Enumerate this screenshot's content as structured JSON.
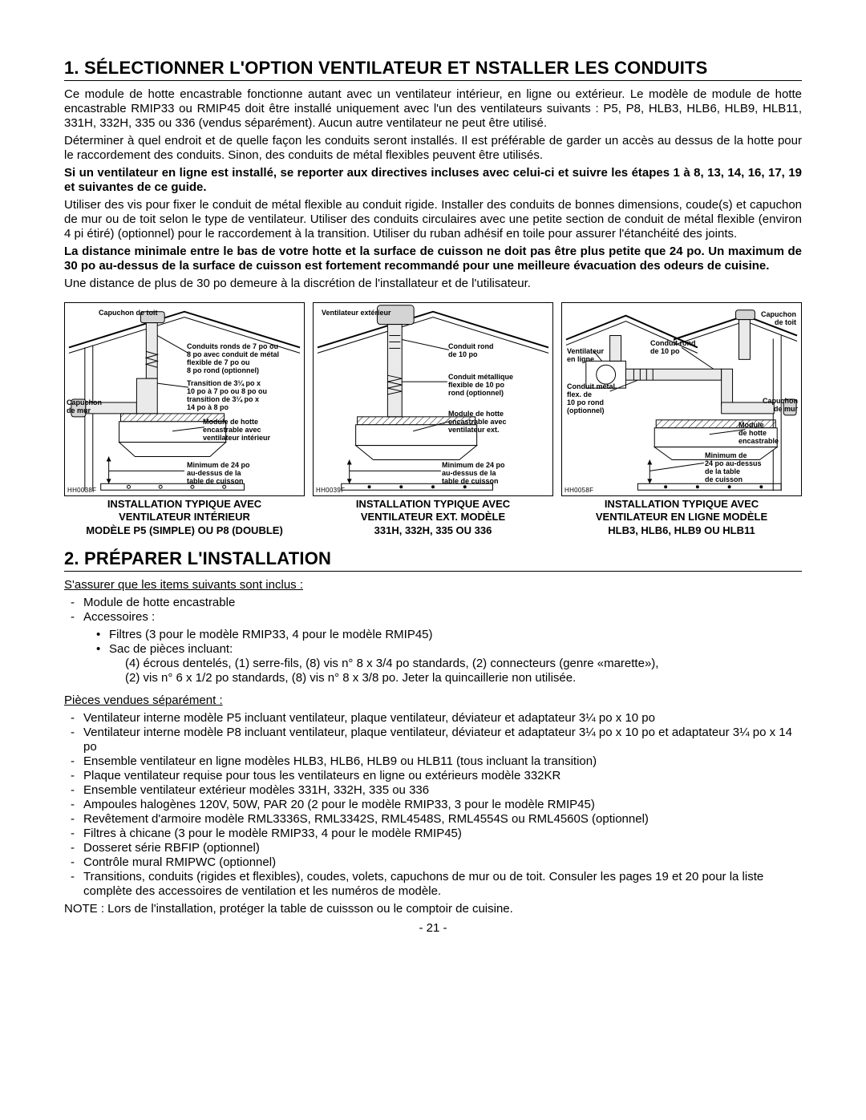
{
  "section1": {
    "title": "1.   SÉLECTIONNER L'OPTION VENTILATEUR ET NSTALLER LES CONDUITS",
    "p1": "Ce module de hotte encastrable fonctionne autant avec un ventilateur intérieur, en ligne ou extérieur. Le modèle de module de hotte encastrable RMIP33 ou RMIP45 doit être installé uniquement avec l'un des ventilateurs suivants : P5, P8, HLB3, HLB6, HLB9, HLB11, 331H, 332H, 335 ou 336 (vendus séparément). Aucun autre ventilateur ne peut être utilisé.",
    "p2": "Déterminer à quel endroit et de quelle façon les conduits seront installés. Il est préférable de garder un accès au dessus de la hotte pour le raccordement des conduits. Sinon, des conduits de métal flexibles peuvent être utilisés.",
    "p3_bold": "Si un ventilateur en ligne est installé, se reporter aux directives incluses avec celui-ci et suivre les étapes 1 à 8, 13, 14, 16, 17, 19 et suivantes de ce guide.",
    "p4": "Utiliser des vis pour fixer le conduit de métal flexible au conduit rigide. Installer des conduits de bonnes dimensions, coude(s) et capuchon de mur ou de toit selon le type de ventilateur. Utiliser des conduits circulaires avec une petite section de conduit de métal flexible (environ 4 pi étiré) (optionnel) pour le raccordement à la transition. Utiliser du ruban adhésif en toile pour assurer l'étanchéité des joints.",
    "p5_bold": "La distance minimale entre le bas de votre hotte et la surface de cuisson ne doit pas être plus petite que 24 po. Un maximum de 30 po au-dessus de la surface de cuisson est fortement recommandé pour une meilleure évacuation des odeurs de cuisine.",
    "p6": "Une distance de plus de 30 po demeure à la discrétion de l'installateur et de l'utilisateur."
  },
  "diagram1": {
    "code": "HH0038F",
    "labels": {
      "roof_cap": "Capuchon de toit",
      "wall_cap": "Capuchon\nde mur",
      "ducts": "Conduits ronds de 7 po ou\n8 po avec conduit de métal\nflexible de 7 po ou\n8 po rond (optionnel)",
      "transition": "Transition de 3¼ po x\n10 po à 7 po ou 8 po ou\ntransition de 3¼ po x\n14 po à 8 po",
      "module": "Module de hotte\nencastrable avec\nventilateur intérieur",
      "min": "Minimum de 24 po\nau-dessus de la\ntable de cuisson"
    },
    "caption": "INSTALLATION TYPIQUE AVEC\nVENTILATEUR INTÉRIEUR\nMODÈLE P5 (SIMPLE) OU P8 (DOUBLE)"
  },
  "diagram2": {
    "code": "HH0039F",
    "labels": {
      "ext_fan": "Ventilateur extérieur",
      "duct10": "Conduit rond\nde 10 po",
      "flex10": "Conduit métallique\nflexible de 10 po\nrond (optionnel)",
      "module": "Module de hotte\nencastrable avec\nventilateur ext.",
      "min": "Minimum de 24 po\nau-dessus de la\ntable de cuisson"
    },
    "caption": "INSTALLATION TYPIQUE AVEC\nVENTILATEUR EXT. MODÈLE\n331H, 332H, 335 OU 336"
  },
  "diagram3": {
    "code": "HH0058F",
    "labels": {
      "roof_cap": "Capuchon\nde toit",
      "duct10": "Conduit rond\nde 10 po",
      "inline_fan": "Ventilateur\nen ligne",
      "flex10": "Conduit métal.\nflex. de\n10 po rond\n(optionnel)",
      "wall_cap": "Capuchon\nde mur",
      "module": "Module\nde hotte\nencastrable",
      "min": "Minimum de\n24 po au-dessus\nde la table\nde cuisson"
    },
    "caption": "INSTALLATION TYPIQUE AVEC\nVENTILATEUR EN LIGNE MODÈLE\nHLB3, HLB6, HLB9 OU HLB11"
  },
  "section2": {
    "title": "2.   PRÉPARER L'INSTALLATION",
    "intro": "S'assurer que les items suivants sont inclus :",
    "items1": {
      "a": "Module de hotte encastrable",
      "b": "Accessoires :",
      "b1": "Filtres (3 pour le modèle RMIP33, 4 pour le modèle RMIP45)",
      "b2": "Sac de pièces incluant:",
      "b2_detail1": "(4) écrous dentelés, (1) serre-fils, (8) vis n° 8 x 3/4 po standards, (2) connecteurs (genre «marette»),",
      "b2_detail2": "(2) vis n° 6 x 1/2 po standards, (8) vis n° 8 x 3/8 po. Jeter la quincaillerie non utilisée."
    },
    "sep": "Pièces vendues séparément :",
    "items2": [
      "Ventilateur interne modèle P5 incluant ventilateur, plaque ventilateur, déviateur et adaptateur 3¼ po x 10 po",
      "Ventilateur interne modèle P8 incluant ventilateur, plaque ventilateur, déviateur et adaptateur 3¼ po x 10 po et adaptateur 3¼ po x 14 po",
      "Ensemble ventilateur en ligne modèles HLB3, HLB6, HLB9 ou HLB11 (tous incluant la transition)",
      "Plaque ventilateur requise pour tous les ventilateurs en ligne ou extérieurs modèle 332KR",
      "Ensemble ventilateur extérieur modèles 331H, 332H, 335 ou 336",
      "Ampoules halogènes 120V, 50W, PAR 20 (2 pour le modèle RMIP33, 3 pour le modèle RMIP45)",
      "Revêtement d'armoire modèle RML3336S, RML3342S, RML4548S, RML4554S ou RML4560S (optionnel)",
      "Filtres à chicane (3 pour le modèle RMIP33, 4 pour le modèle RMIP45)",
      "Dosseret série RBFIP (optionnel)",
      "Contrôle mural RMIPWC (optionnel)",
      "Transitions, conduits (rigides et flexibles), coudes, volets, capuchons de mur ou de toit. Consuler les pages 19 et 20 pour la liste complète des accessoires de ventilation et les numéros de modèle."
    ],
    "note": "NOTE : Lors de l'installation, protéger la table de cuissson ou le comptoir de cuisine."
  },
  "page_number": "- 21 -"
}
